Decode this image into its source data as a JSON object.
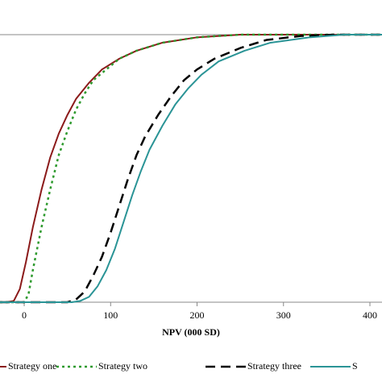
{
  "chart_data": {
    "type": "line",
    "xlabel": "NPV (000 SD)",
    "xlim": [
      -28,
      414
    ],
    "xticks": [
      0,
      100,
      200,
      300,
      400
    ],
    "ylim": [
      0,
      1
    ],
    "series": [
      {
        "name": "Strategy one",
        "color": "#8b1a1a",
        "dash": "solid",
        "x": [
          -28,
          -20,
          -12,
          -5,
          2,
          10,
          20,
          30,
          40,
          50,
          60,
          75,
          90,
          110,
          130,
          160,
          200,
          250,
          300,
          414
        ],
        "values": [
          0,
          0,
          0.005,
          0.05,
          0.15,
          0.28,
          0.42,
          0.54,
          0.63,
          0.7,
          0.76,
          0.82,
          0.87,
          0.91,
          0.94,
          0.97,
          0.99,
          1,
          1,
          1
        ]
      },
      {
        "name": "Strategy two",
        "color": "#2e9a2e",
        "dash": "dotted",
        "x": [
          -28,
          0,
          5,
          10,
          20,
          30,
          40,
          50,
          60,
          70,
          80,
          95,
          110,
          130,
          160,
          200,
          250,
          300,
          414
        ],
        "values": [
          0,
          0,
          0.03,
          0.12,
          0.28,
          0.42,
          0.55,
          0.64,
          0.72,
          0.78,
          0.83,
          0.87,
          0.91,
          0.94,
          0.97,
          0.99,
          1,
          1,
          1
        ]
      },
      {
        "name": "Strategy three",
        "color": "#000000",
        "dash": "dashed",
        "x": [
          -28,
          50,
          60,
          70,
          80,
          90,
          100,
          110,
          120,
          130,
          140,
          155,
          170,
          185,
          200,
          220,
          250,
          280,
          320,
          360,
          414
        ],
        "values": [
          0,
          0,
          0.01,
          0.04,
          0.1,
          0.17,
          0.26,
          0.36,
          0.46,
          0.55,
          0.62,
          0.7,
          0.77,
          0.83,
          0.87,
          0.91,
          0.95,
          0.98,
          0.995,
          1,
          1
        ]
      },
      {
        "name": "S",
        "color": "#2a9496",
        "dash": "solid",
        "x": [
          -28,
          55,
          65,
          75,
          85,
          95,
          105,
          115,
          125,
          135,
          145,
          160,
          175,
          190,
          205,
          225,
          255,
          285,
          330,
          370,
          414
        ],
        "values": [
          0,
          0,
          0.005,
          0.02,
          0.06,
          0.12,
          0.2,
          0.3,
          0.4,
          0.49,
          0.57,
          0.66,
          0.74,
          0.8,
          0.85,
          0.9,
          0.94,
          0.97,
          0.99,
          1,
          1
        ]
      }
    ]
  }
}
